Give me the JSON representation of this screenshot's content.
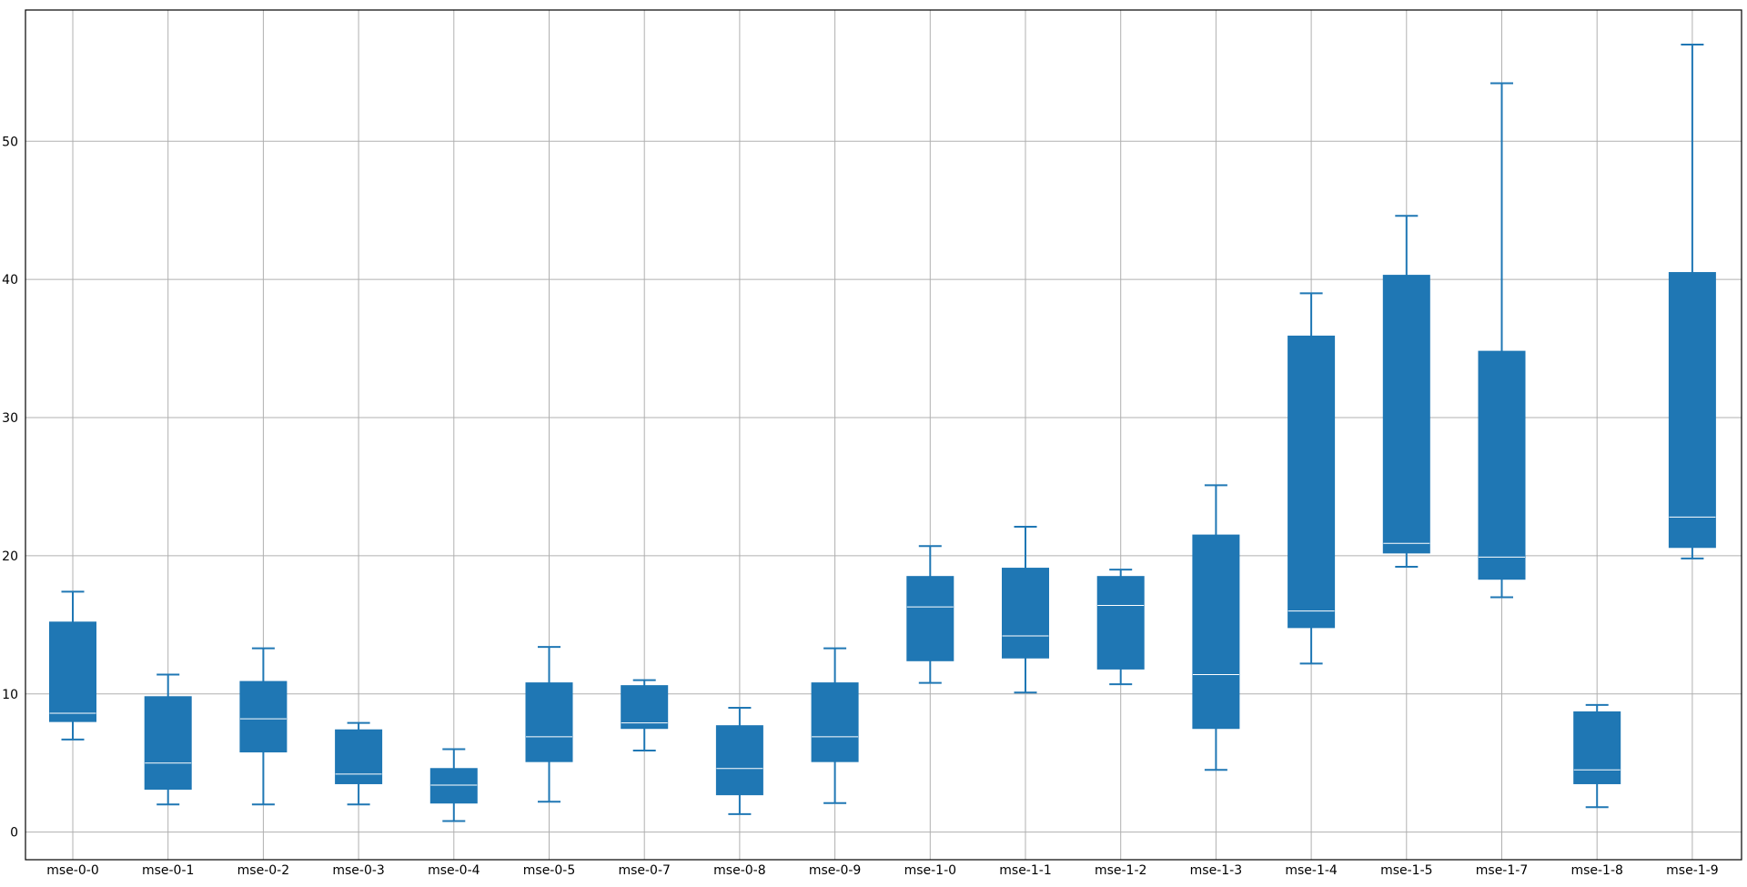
{
  "chart_data": {
    "type": "box",
    "title": "",
    "xlabel": "",
    "ylabel": "",
    "ylim": [
      -2,
      59.5
    ],
    "yticks": [
      0,
      10,
      20,
      30,
      40,
      50
    ],
    "grid": true,
    "box_color": "#1f77b4",
    "median_color": "#ffffff",
    "categories": [
      "mse-0-0",
      "mse-0-1",
      "mse-0-2",
      "mse-0-3",
      "mse-0-4",
      "mse-0-5",
      "mse-0-7",
      "mse-0-8",
      "mse-0-9",
      "mse-1-0",
      "mse-1-1",
      "mse-1-2",
      "mse-1-3",
      "mse-1-4",
      "mse-1-5",
      "mse-1-7",
      "mse-1-8",
      "mse-1-9"
    ],
    "boxes": [
      {
        "whislo": 6.7,
        "q1": 8.0,
        "med": 8.6,
        "q3": 15.2,
        "whishi": 17.4
      },
      {
        "whislo": 2.0,
        "q1": 3.1,
        "med": 5.0,
        "q3": 9.8,
        "whishi": 11.4
      },
      {
        "whislo": 2.0,
        "q1": 5.8,
        "med": 8.2,
        "q3": 10.9,
        "whishi": 13.3
      },
      {
        "whislo": 2.0,
        "q1": 3.5,
        "med": 4.2,
        "q3": 7.4,
        "whishi": 7.9
      },
      {
        "whislo": 0.8,
        "q1": 2.1,
        "med": 3.4,
        "q3": 4.6,
        "whishi": 6.0
      },
      {
        "whislo": 2.2,
        "q1": 5.1,
        "med": 6.9,
        "q3": 10.8,
        "whishi": 13.4
      },
      {
        "whislo": 5.9,
        "q1": 7.5,
        "med": 7.9,
        "q3": 10.6,
        "whishi": 11.0
      },
      {
        "whislo": 1.3,
        "q1": 2.7,
        "med": 4.6,
        "q3": 7.7,
        "whishi": 9.0
      },
      {
        "whislo": 2.1,
        "q1": 5.1,
        "med": 6.9,
        "q3": 10.8,
        "whishi": 13.3
      },
      {
        "whislo": 10.8,
        "q1": 12.4,
        "med": 16.3,
        "q3": 18.5,
        "whishi": 20.7
      },
      {
        "whislo": 10.1,
        "q1": 12.6,
        "med": 14.2,
        "q3": 19.1,
        "whishi": 22.1
      },
      {
        "whislo": 10.7,
        "q1": 11.8,
        "med": 16.4,
        "q3": 18.5,
        "whishi": 19.0
      },
      {
        "whislo": 4.5,
        "q1": 7.5,
        "med": 11.4,
        "q3": 21.5,
        "whishi": 25.1
      },
      {
        "whislo": 12.2,
        "q1": 14.8,
        "med": 16.0,
        "q3": 35.9,
        "whishi": 39.0
      },
      {
        "whislo": 19.2,
        "q1": 20.2,
        "med": 20.9,
        "q3": 40.3,
        "whishi": 44.6
      },
      {
        "whislo": 17.0,
        "q1": 18.3,
        "med": 19.9,
        "q3": 34.8,
        "whishi": 54.2
      },
      {
        "whislo": 1.8,
        "q1": 3.5,
        "med": 4.5,
        "q3": 8.7,
        "whishi": 9.2
      },
      {
        "whislo": 19.8,
        "q1": 20.6,
        "med": 22.8,
        "q3": 40.5,
        "whishi": 57.0
      }
    ]
  }
}
